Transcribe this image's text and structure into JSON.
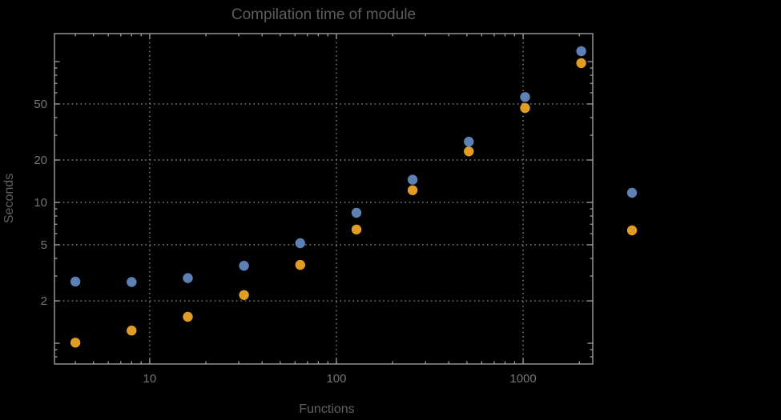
{
  "chart_data": {
    "type": "scatter",
    "title": "Compilation time of module",
    "xlabel": "Functions",
    "ylabel": "Seconds",
    "xscale": "log",
    "yscale": "log",
    "xlim": [
      3.09,
      2360
    ],
    "ylim": [
      0.712,
      158
    ],
    "grid": "dotted-at-labeled-ticks",
    "x_axis": {
      "label": "Functions",
      "labeled_ticks": [
        10,
        100,
        1000
      ],
      "minor_ticks": [
        4,
        5,
        6,
        7,
        8,
        9,
        20,
        30,
        40,
        50,
        60,
        70,
        80,
        90,
        200,
        300,
        400,
        500,
        600,
        700,
        800,
        900,
        2000
      ]
    },
    "y_axis": {
      "label": "Seconds",
      "labeled_ticks": [
        2,
        5,
        10,
        20,
        50
      ],
      "major_unlabeled_ticks": [
        1,
        100
      ],
      "minor_ticks": [
        0.8,
        0.9,
        3,
        4,
        6,
        7,
        8,
        9,
        30,
        40,
        60,
        70,
        80,
        90
      ]
    },
    "x": [
      4,
      8,
      16,
      32,
      64,
      128,
      256,
      512,
      1024,
      2048
    ],
    "series": [
      {
        "name": "series-1-blue",
        "color": "#5e81b5",
        "values": [
          2.74,
          2.72,
          2.9,
          3.55,
          5.13,
          8.44,
          14.5,
          27.0,
          56.0,
          118.5
        ]
      },
      {
        "name": "series-2-orange",
        "color": "#e19c24",
        "values": [
          1.01,
          1.23,
          1.54,
          2.2,
          3.6,
          6.42,
          12.2,
          23.0,
          46.8,
          97.5
        ]
      }
    ],
    "legend": {
      "labels_visible": false,
      "markers": [
        {
          "name": "legend-marker-blue",
          "color": "#5e81b5"
        },
        {
          "name": "legend-marker-orange",
          "color": "#e19c24"
        }
      ]
    },
    "colors": {
      "background": "#000000",
      "frame": "#9c9c9c",
      "grid": "#848484",
      "tick_label": "#757575",
      "axis_label": "#616161",
      "title": "#5c5c5c"
    }
  }
}
